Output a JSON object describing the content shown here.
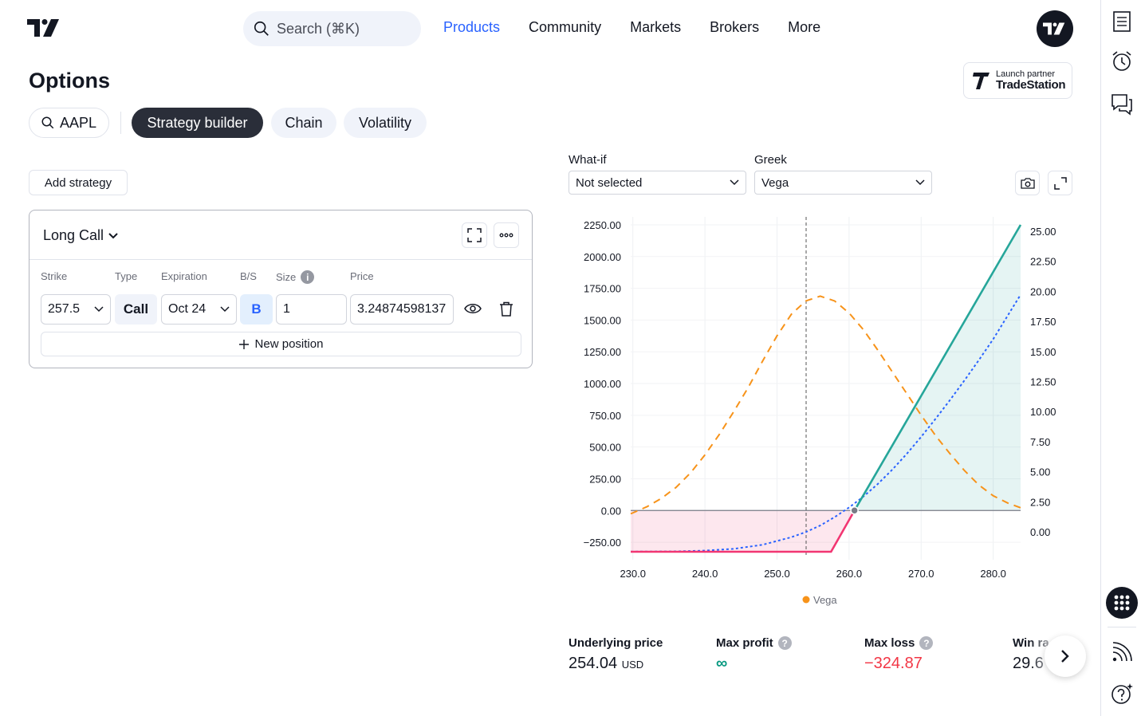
{
  "header": {
    "search_placeholder": "Search (⌘K)",
    "nav": [
      "Products",
      "Community",
      "Markets",
      "Brokers",
      "More"
    ],
    "active_nav": "Products"
  },
  "page": {
    "title": "Options",
    "partner_small": "Launch partner",
    "partner_name": "TradeStation"
  },
  "tabs": {
    "symbol": "AAPL",
    "items": [
      "Strategy builder",
      "Chain",
      "Volatility"
    ],
    "active": "Strategy builder"
  },
  "strategy": {
    "add_label": "Add strategy",
    "name": "Long Call",
    "columns": [
      "Strike",
      "Type",
      "Expiration",
      "B/S",
      "Size",
      "Price"
    ],
    "leg": {
      "strike": "257.5",
      "type": "Call",
      "expiration": "Oct 24",
      "side": "B",
      "size": "1",
      "price": "3.24874598137"
    },
    "new_position_label": "New position"
  },
  "controls": {
    "whatif_label": "What-if",
    "whatif_value": "Not selected",
    "greek_label": "Greek",
    "greek_value": "Vega"
  },
  "chart_data": {
    "type": "line",
    "x_ticks": [
      "230.0",
      "240.0",
      "250.0",
      "260.0",
      "270.0",
      "280.0"
    ],
    "xlim": [
      229.7,
      283.8
    ],
    "y_left_ticks": [
      "2250.00",
      "2000.00",
      "1750.00",
      "1500.00",
      "1250.00",
      "1000.00",
      "750.00",
      "500.00",
      "250.00",
      "0.00",
      "−250.00"
    ],
    "ylim_left": [
      -324.87,
      2250
    ],
    "y_right_ticks": [
      "25.00",
      "22.50",
      "20.00",
      "17.50",
      "15.00",
      "12.50",
      "10.00",
      "7.50",
      "5.00",
      "2.50",
      "0.00"
    ],
    "ylim_right": [
      0,
      25
    ],
    "underlying_price_marker": 254.04,
    "legend": [
      "Vega"
    ],
    "series": [
      {
        "name": "Vega",
        "axis": "right",
        "color": "#f7931a",
        "style": "dashed",
        "x": [
          229.7,
          232,
          234,
          236,
          238,
          240,
          242,
          244,
          246,
          248,
          250,
          252,
          254,
          256,
          258,
          260,
          262,
          264,
          266,
          268,
          270,
          272,
          274,
          276,
          278,
          280,
          282,
          283.8
        ],
        "y": [
          1.5,
          2.1,
          2.8,
          3.7,
          4.9,
          6.4,
          8.1,
          10.0,
          12.0,
          14.2,
          16.3,
          18.1,
          19.2,
          19.6,
          19.2,
          18.2,
          16.8,
          15.1,
          13.3,
          11.5,
          9.7,
          8.0,
          6.5,
          5.1,
          3.9,
          3.0,
          2.4,
          2.0
        ]
      },
      {
        "axis": "left",
        "color": "#2962ff",
        "style": "dotted",
        "x": [
          229.7,
          236,
          240,
          244,
          248,
          252,
          254,
          256,
          258,
          260,
          262,
          264,
          266,
          268,
          270,
          272,
          274,
          276,
          278,
          280,
          283.8
        ],
        "y": [
          -324,
          -322,
          -316,
          -302,
          -270,
          -210,
          -170,
          -118,
          -52,
          24,
          110,
          210,
          322,
          446,
          580,
          722,
          870,
          1024,
          1184,
          1350,
          1700
        ]
      },
      {
        "axis": "left",
        "color": "#26a69a",
        "style": "solid",
        "x": [
          229.7,
          257.5,
          260.75,
          283.8
        ],
        "y": [
          -324.87,
          -324.87,
          0,
          2250
        ]
      }
    ],
    "breakeven_marker": 260.75
  },
  "stats": {
    "underlying_label": "Underlying price",
    "underlying_value": "254.04",
    "underlying_unit": "USD",
    "max_profit_label": "Max profit",
    "max_profit_value": "∞",
    "max_loss_label": "Max loss",
    "max_loss_value": "−324.87",
    "win_label": "Win ra",
    "win_value": "29.6"
  },
  "colors": {
    "accent": "#2962ff",
    "profit": "#26a69a",
    "loss": "#f23672",
    "vega": "#f7931a"
  }
}
